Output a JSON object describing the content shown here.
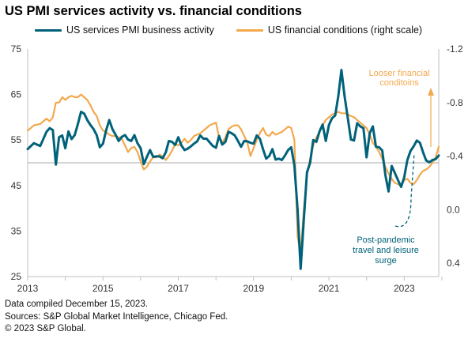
{
  "title": "US PMI services activity vs. financial conditions",
  "legend": {
    "pmi": "US services PMI business activity",
    "fin": "US financial conditions  (right scale)"
  },
  "colors": {
    "pmi": "#00627a",
    "fin": "#f2a94e",
    "annotation_orange": "#f2a94e",
    "annotation_teal": "#00627a",
    "axis_text": "#333333",
    "reference_line": "#8c8c8c"
  },
  "annotations": {
    "looser_line1": "Looser financial",
    "looser_line2": "conditoins",
    "post_line1": "Post-pandemic",
    "post_line2": "travel and leisure",
    "post_line3": "surge"
  },
  "footer": {
    "line1": "Data compiled December 15, 2023.",
    "line2": "Sources: S&P Global Market Intelligence,  Chicago Fed.",
    "line3": "© 2023 S&P Global."
  },
  "chart_data": {
    "type": "line",
    "title": "US PMI services activity vs. financial conditions",
    "x_ticks": [
      "2013",
      "2015",
      "2017",
      "2019",
      "2021",
      "2023"
    ],
    "xlim": [
      "2013-01",
      "2023-12"
    ],
    "left_axis": {
      "ylim": [
        25,
        75
      ],
      "ticks": [
        "75",
        "65",
        "55",
        "45",
        "35",
        "25"
      ],
      "reference_line": 50
    },
    "right_axis": {
      "ylim": [
        0.5,
        -1.2
      ],
      "inverted": true,
      "ticks": [
        "-1.2",
        "-0.8",
        "-0.4",
        "0.0",
        "0.4"
      ]
    },
    "grid": false,
    "legend_position": "top",
    "series": [
      {
        "name": "US services PMI business activity",
        "axis": "left",
        "points": [
          [
            "2013-01",
            53.0
          ],
          [
            "2013-03",
            54.3
          ],
          [
            "2013-05",
            53.7
          ],
          [
            "2013-07",
            56.8
          ],
          [
            "2013-08",
            57.6
          ],
          [
            "2013-09",
            57.2
          ],
          [
            "2013-10",
            49.6
          ],
          [
            "2013-11",
            55.6
          ],
          [
            "2013-12",
            56.0
          ],
          [
            "2014-01",
            53.2
          ],
          [
            "2014-02",
            56.9
          ],
          [
            "2014-03",
            55.2
          ],
          [
            "2014-04",
            56.1
          ],
          [
            "2014-05",
            58.5
          ],
          [
            "2014-06",
            61.2
          ],
          [
            "2014-07",
            60.8
          ],
          [
            "2014-08",
            59.4
          ],
          [
            "2014-09",
            58.3
          ],
          [
            "2014-10",
            57.4
          ],
          [
            "2014-11",
            56.1
          ],
          [
            "2014-12",
            53.4
          ],
          [
            "2015-01",
            54.2
          ],
          [
            "2015-02",
            57.1
          ],
          [
            "2015-03",
            59.4
          ],
          [
            "2015-04",
            57.4
          ],
          [
            "2015-05",
            56.2
          ],
          [
            "2015-06",
            54.8
          ],
          [
            "2015-07",
            55.7
          ],
          [
            "2015-08",
            56.1
          ],
          [
            "2015-09",
            55.1
          ],
          [
            "2015-10",
            54.8
          ],
          [
            "2015-11",
            56.1
          ],
          [
            "2015-12",
            54.3
          ],
          [
            "2016-01",
            53.2
          ],
          [
            "2016-02",
            49.7
          ],
          [
            "2016-03",
            51.3
          ],
          [
            "2016-04",
            52.8
          ],
          [
            "2016-05",
            51.3
          ],
          [
            "2016-06",
            51.4
          ],
          [
            "2016-07",
            51.4
          ],
          [
            "2016-08",
            51.0
          ],
          [
            "2016-09",
            52.3
          ],
          [
            "2016-10",
            54.8
          ],
          [
            "2016-11",
            54.6
          ],
          [
            "2016-12",
            53.9
          ],
          [
            "2017-01",
            55.6
          ],
          [
            "2017-02",
            53.8
          ],
          [
            "2017-03",
            52.8
          ],
          [
            "2017-04",
            53.1
          ],
          [
            "2017-05",
            53.6
          ],
          [
            "2017-06",
            54.2
          ],
          [
            "2017-07",
            54.7
          ],
          [
            "2017-08",
            56.0
          ],
          [
            "2017-09",
            55.3
          ],
          [
            "2017-10",
            55.3
          ],
          [
            "2017-11",
            54.5
          ],
          [
            "2017-12",
            53.7
          ],
          [
            "2018-01",
            53.3
          ],
          [
            "2018-02",
            55.9
          ],
          [
            "2018-03",
            54.0
          ],
          [
            "2018-04",
            54.6
          ],
          [
            "2018-05",
            56.8
          ],
          [
            "2018-06",
            56.5
          ],
          [
            "2018-07",
            56.0
          ],
          [
            "2018-08",
            54.8
          ],
          [
            "2018-09",
            53.5
          ],
          [
            "2018-10",
            54.8
          ],
          [
            "2018-11",
            54.7
          ],
          [
            "2018-12",
            54.4
          ],
          [
            "2019-01",
            54.2
          ],
          [
            "2019-02",
            56.0
          ],
          [
            "2019-03",
            55.3
          ],
          [
            "2019-04",
            53.0
          ],
          [
            "2019-05",
            50.9
          ],
          [
            "2019-06",
            51.5
          ],
          [
            "2019-07",
            53.0
          ],
          [
            "2019-08",
            50.7
          ],
          [
            "2019-09",
            50.9
          ],
          [
            "2019-10",
            50.6
          ],
          [
            "2019-11",
            51.6
          ],
          [
            "2019-12",
            52.8
          ],
          [
            "2020-01",
            53.4
          ],
          [
            "2020-02",
            49.4
          ],
          [
            "2020-03",
            39.8
          ],
          [
            "2020-04",
            26.7
          ],
          [
            "2020-05",
            37.5
          ],
          [
            "2020-06",
            47.9
          ],
          [
            "2020-07",
            50.0
          ],
          [
            "2020-08",
            55.0
          ],
          [
            "2020-09",
            54.6
          ],
          [
            "2020-10",
            56.9
          ],
          [
            "2020-11",
            58.4
          ],
          [
            "2020-12",
            54.8
          ],
          [
            "2021-01",
            58.3
          ],
          [
            "2021-02",
            59.8
          ],
          [
            "2021-03",
            60.4
          ],
          [
            "2021-04",
            64.7
          ],
          [
            "2021-05",
            70.4
          ],
          [
            "2021-06",
            64.6
          ],
          [
            "2021-07",
            59.9
          ],
          [
            "2021-08",
            55.1
          ],
          [
            "2021-09",
            54.9
          ],
          [
            "2021-10",
            58.7
          ],
          [
            "2021-11",
            58.0
          ],
          [
            "2021-12",
            57.6
          ],
          [
            "2022-01",
            51.2
          ],
          [
            "2022-02",
            56.5
          ],
          [
            "2022-03",
            58.0
          ],
          [
            "2022-04",
            53.5
          ],
          [
            "2022-05",
            53.4
          ],
          [
            "2022-06",
            52.7
          ],
          [
            "2022-07",
            47.3
          ],
          [
            "2022-08",
            43.7
          ],
          [
            "2022-09",
            49.3
          ],
          [
            "2022-10",
            47.8
          ],
          [
            "2022-11",
            46.2
          ],
          [
            "2022-12",
            44.7
          ],
          [
            "2023-01",
            46.8
          ],
          [
            "2023-02",
            50.6
          ],
          [
            "2023-03",
            52.6
          ],
          [
            "2023-04",
            53.6
          ],
          [
            "2023-05",
            54.9
          ],
          [
            "2023-06",
            54.4
          ],
          [
            "2023-07",
            52.3
          ],
          [
            "2023-08",
            50.5
          ],
          [
            "2023-09",
            50.1
          ],
          [
            "2023-10",
            50.6
          ],
          [
            "2023-11",
            50.8
          ],
          [
            "2023-12",
            51.6
          ]
        ]
      },
      {
        "name": "US financial conditions  (right scale)",
        "axis": "right",
        "points": [
          [
            "2013-01",
            -0.59
          ],
          [
            "2013-03",
            -0.63
          ],
          [
            "2013-05",
            -0.64
          ],
          [
            "2013-06",
            -0.66
          ],
          [
            "2013-07",
            -0.68
          ],
          [
            "2013-08",
            -0.66
          ],
          [
            "2013-09",
            -0.69
          ],
          [
            "2013-10",
            -0.8
          ],
          [
            "2013-11",
            -0.8
          ],
          [
            "2013-12",
            -0.84
          ],
          [
            "2014-01",
            -0.82
          ],
          [
            "2014-02",
            -0.84
          ],
          [
            "2014-03",
            -0.85
          ],
          [
            "2014-04",
            -0.84
          ],
          [
            "2014-05",
            -0.84
          ],
          [
            "2014-06",
            -0.86
          ],
          [
            "2014-07",
            -0.84
          ],
          [
            "2014-08",
            -0.82
          ],
          [
            "2014-09",
            -0.78
          ],
          [
            "2014-10",
            -0.73
          ],
          [
            "2014-11",
            -0.7
          ],
          [
            "2014-12",
            -0.63
          ],
          [
            "2015-01",
            -0.59
          ],
          [
            "2015-02",
            -0.58
          ],
          [
            "2015-03",
            -0.56
          ],
          [
            "2015-04",
            -0.55
          ],
          [
            "2015-05",
            -0.55
          ],
          [
            "2015-06",
            -0.54
          ],
          [
            "2015-07",
            -0.53
          ],
          [
            "2015-08",
            -0.48
          ],
          [
            "2015-09",
            -0.43
          ],
          [
            "2015-10",
            -0.46
          ],
          [
            "2015-11",
            -0.47
          ],
          [
            "2015-12",
            -0.43
          ],
          [
            "2016-01",
            -0.36
          ],
          [
            "2016-02",
            -0.3
          ],
          [
            "2016-03",
            -0.32
          ],
          [
            "2016-04",
            -0.36
          ],
          [
            "2016-05",
            -0.39
          ],
          [
            "2016-06",
            -0.39
          ],
          [
            "2016-07",
            -0.41
          ],
          [
            "2016-08",
            -0.4
          ],
          [
            "2016-09",
            -0.37
          ],
          [
            "2016-10",
            -0.4
          ],
          [
            "2016-11",
            -0.44
          ],
          [
            "2016-12",
            -0.49
          ],
          [
            "2017-01",
            -0.48
          ],
          [
            "2017-02",
            -0.5
          ],
          [
            "2017-03",
            -0.53
          ],
          [
            "2017-04",
            -0.5
          ],
          [
            "2017-05",
            -0.52
          ],
          [
            "2017-06",
            -0.55
          ],
          [
            "2017-07",
            -0.56
          ],
          [
            "2017-08",
            -0.57
          ],
          [
            "2017-09",
            -0.59
          ],
          [
            "2017-10",
            -0.61
          ],
          [
            "2017-11",
            -0.63
          ],
          [
            "2017-12",
            -0.64
          ],
          [
            "2018-01",
            -0.65
          ],
          [
            "2018-02",
            -0.54
          ],
          [
            "2018-03",
            -0.5
          ],
          [
            "2018-04",
            -0.54
          ],
          [
            "2018-05",
            -0.6
          ],
          [
            "2018-06",
            -0.62
          ],
          [
            "2018-07",
            -0.63
          ],
          [
            "2018-08",
            -0.63
          ],
          [
            "2018-09",
            -0.6
          ],
          [
            "2018-10",
            -0.55
          ],
          [
            "2018-11",
            -0.5
          ],
          [
            "2018-12",
            -0.4
          ],
          [
            "2019-01",
            -0.46
          ],
          [
            "2019-02",
            -0.52
          ],
          [
            "2019-03",
            -0.57
          ],
          [
            "2019-04",
            -0.61
          ],
          [
            "2019-05",
            -0.56
          ],
          [
            "2019-06",
            -0.55
          ],
          [
            "2019-07",
            -0.58
          ],
          [
            "2019-08",
            -0.56
          ],
          [
            "2019-09",
            -0.57
          ],
          [
            "2019-10",
            -0.58
          ],
          [
            "2019-11",
            -0.6
          ],
          [
            "2019-12",
            -0.62
          ],
          [
            "2020-01",
            -0.61
          ],
          [
            "2020-02",
            -0.52
          ],
          [
            "2020-03",
            0.2
          ],
          [
            "2020-04",
            0.33
          ],
          [
            "2020-05",
            0.0
          ],
          [
            "2020-06",
            -0.26
          ],
          [
            "2020-07",
            -0.38
          ],
          [
            "2020-08",
            -0.48
          ],
          [
            "2020-09",
            -0.54
          ],
          [
            "2020-10",
            -0.58
          ],
          [
            "2020-11",
            -0.63
          ],
          [
            "2020-12",
            -0.67
          ],
          [
            "2021-01",
            -0.69
          ],
          [
            "2021-02",
            -0.71
          ],
          [
            "2021-03",
            -0.72
          ],
          [
            "2021-04",
            -0.73
          ],
          [
            "2021-05",
            -0.72
          ],
          [
            "2021-06",
            -0.72
          ],
          [
            "2021-07",
            -0.71
          ],
          [
            "2021-08",
            -0.7
          ],
          [
            "2021-09",
            -0.69
          ],
          [
            "2021-10",
            -0.67
          ],
          [
            "2021-11",
            -0.65
          ],
          [
            "2021-12",
            -0.63
          ],
          [
            "2022-01",
            -0.61
          ],
          [
            "2022-02",
            -0.56
          ],
          [
            "2022-03",
            -0.5
          ],
          [
            "2022-04",
            -0.47
          ],
          [
            "2022-05",
            -0.43
          ],
          [
            "2022-06",
            -0.38
          ],
          [
            "2022-07",
            -0.32
          ],
          [
            "2022-08",
            -0.27
          ],
          [
            "2022-09",
            -0.23
          ],
          [
            "2022-10",
            -0.2
          ],
          [
            "2022-11",
            -0.19
          ],
          [
            "2022-12",
            -0.18
          ],
          [
            "2023-01",
            -0.22
          ],
          [
            "2023-02",
            -0.23
          ],
          [
            "2023-03",
            -0.2
          ],
          [
            "2023-04",
            -0.19
          ],
          [
            "2023-05",
            -0.22
          ],
          [
            "2023-06",
            -0.26
          ],
          [
            "2023-07",
            -0.29
          ],
          [
            "2023-08",
            -0.3
          ],
          [
            "2023-09",
            -0.32
          ],
          [
            "2023-10",
            -0.35
          ],
          [
            "2023-11",
            -0.39
          ],
          [
            "2023-12",
            -0.47
          ]
        ]
      }
    ]
  }
}
